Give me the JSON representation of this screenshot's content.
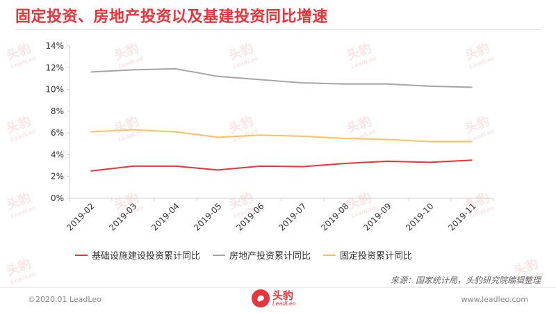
{
  "title": "固定投资、房地产投资以及基建投资同比增速",
  "source": "来源：国家统计局，头豹研究院编辑整理",
  "footer": {
    "copyright": "©2020.01 LeadLeo",
    "website": "www.leadleo.com",
    "logo_cn": "头豹",
    "logo_en": "LeadLeo"
  },
  "watermark": {
    "cn": "头豹",
    "en": "LeadLeo"
  },
  "colors": {
    "title": "#e8343a",
    "infra": "#e8343a",
    "realestate": "#a5a5a5",
    "fixed": "#ffc15a"
  },
  "chart_data": {
    "type": "line",
    "x": [
      "2019-02",
      "2019-03",
      "2019-04",
      "2019-05",
      "2019-06",
      "2019-07",
      "2019-08",
      "2019-09",
      "2019-10",
      "2019-11"
    ],
    "ylim": [
      0,
      14
    ],
    "yticks": [
      "0%",
      "2%",
      "4%",
      "6%",
      "8%",
      "10%",
      "12%",
      "14%"
    ],
    "grid": false,
    "legend_position": "bottom",
    "series": [
      {
        "name": "基础设施建设投资累计同比",
        "color": "#e8343a",
        "values": [
          2.5,
          2.95,
          2.95,
          2.6,
          2.95,
          2.9,
          3.2,
          3.4,
          3.3,
          3.5
        ]
      },
      {
        "name": "房地产投资累计同比",
        "color": "#a5a5a5",
        "values": [
          11.6,
          11.8,
          11.9,
          11.2,
          10.9,
          10.6,
          10.5,
          10.5,
          10.3,
          10.2
        ]
      },
      {
        "name": "固定投资累计同比",
        "color": "#ffc15a",
        "values": [
          6.1,
          6.3,
          6.1,
          5.6,
          5.8,
          5.7,
          5.5,
          5.4,
          5.2,
          5.2
        ]
      }
    ]
  }
}
